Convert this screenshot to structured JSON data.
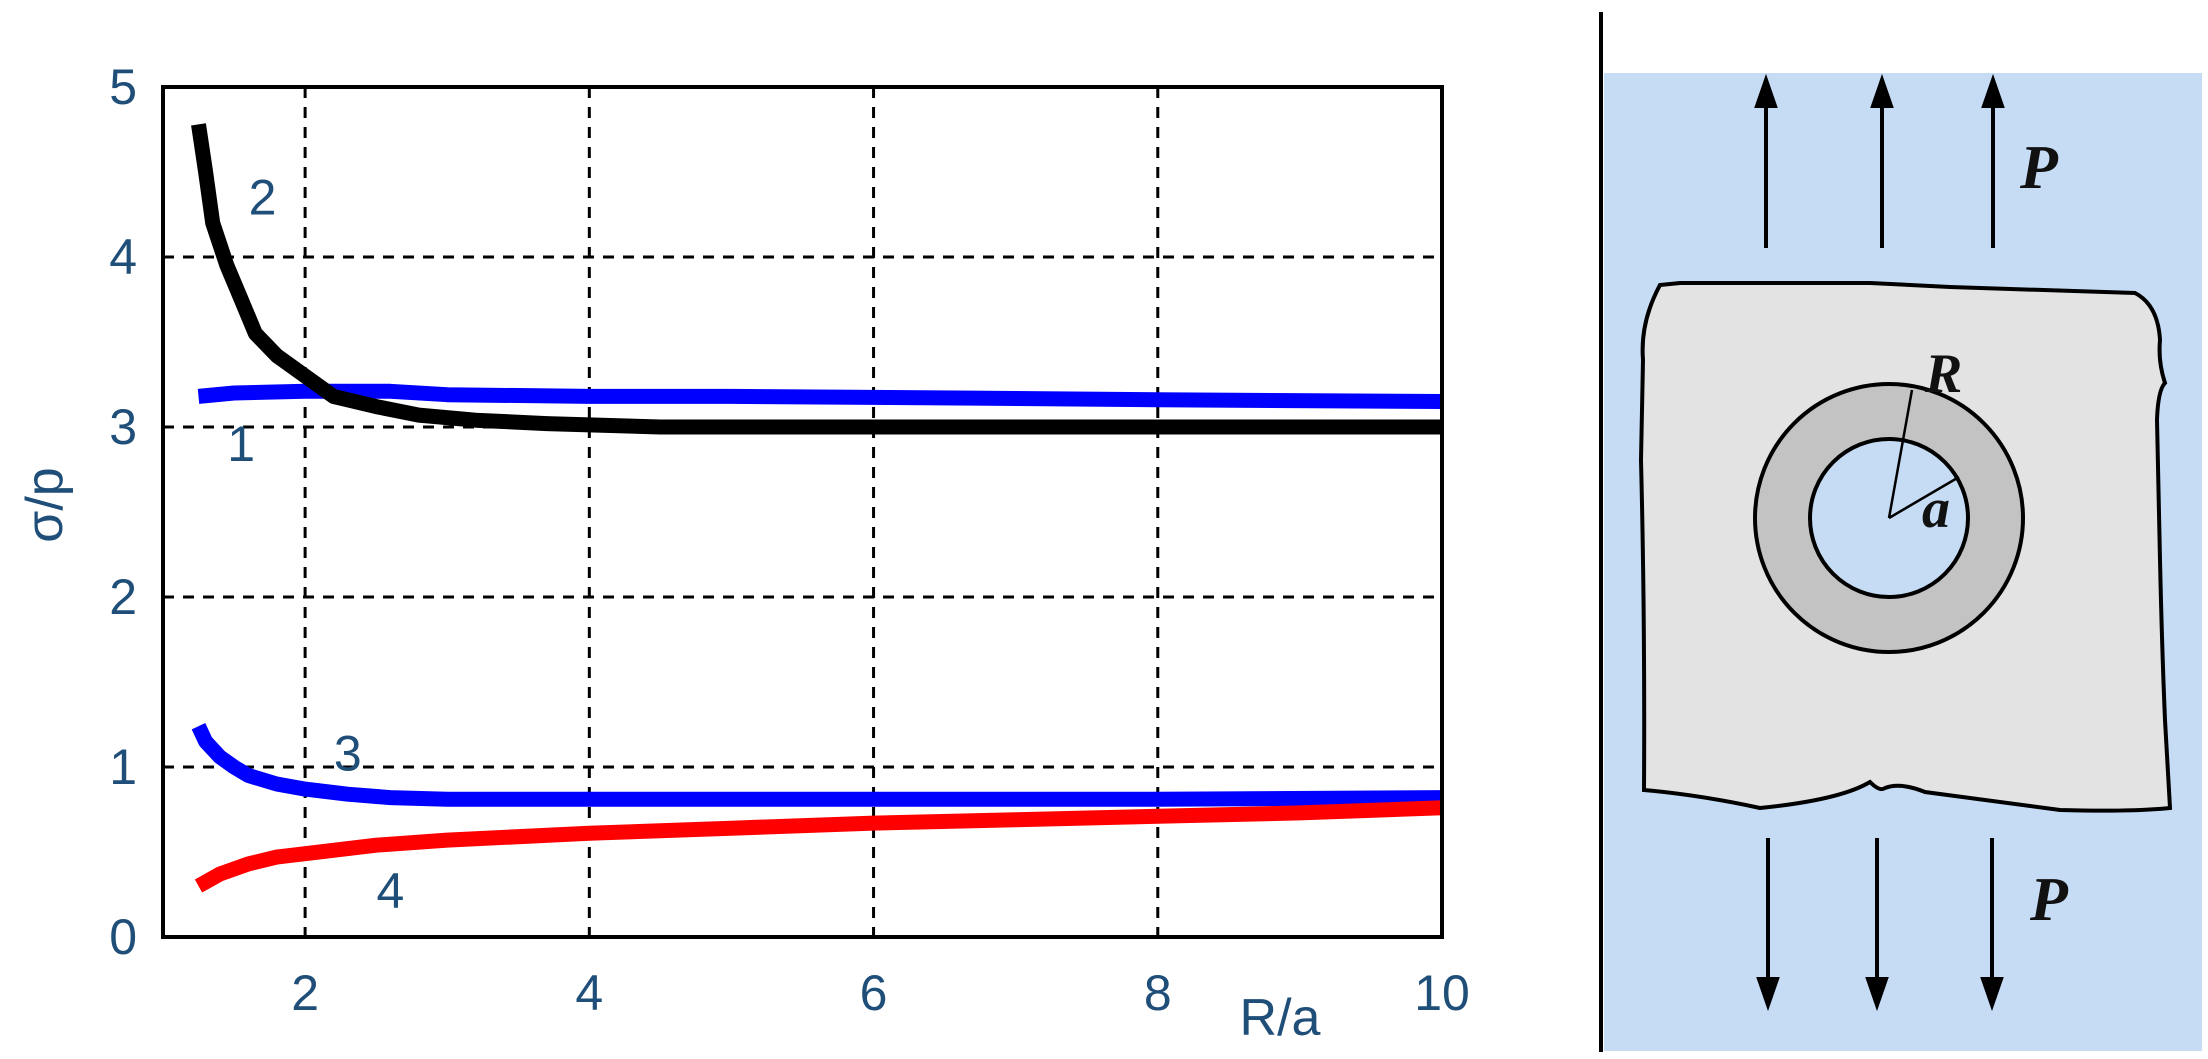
{
  "chart_data": {
    "type": "line",
    "title": "",
    "xlabel": "R/a",
    "ylabel": "σ/p",
    "xlim": [
      1,
      10
    ],
    "ylim": [
      0,
      5
    ],
    "x_ticks": [
      2,
      4,
      6,
      8,
      10
    ],
    "y_ticks": [
      0,
      1,
      2,
      3,
      4,
      5
    ],
    "grid": true,
    "series": [
      {
        "name": "1",
        "color": "#0000ff",
        "x": [
          1.25,
          1.5,
          2.0,
          2.6,
          3.0,
          4.0,
          5.0,
          6.7,
          8.0,
          10.0
        ],
        "y": [
          3.18,
          3.2,
          3.21,
          3.21,
          3.19,
          3.18,
          3.18,
          3.17,
          3.16,
          3.15
        ]
      },
      {
        "name": "2",
        "color": "#000000",
        "x": [
          1.25,
          1.3,
          1.35,
          1.45,
          1.55,
          1.65,
          1.8,
          2.0,
          2.2,
          2.5,
          2.8,
          3.2,
          3.7,
          4.5,
          6.0,
          8.0,
          10.0
        ],
        "y": [
          4.78,
          4.5,
          4.2,
          3.95,
          3.75,
          3.55,
          3.42,
          3.3,
          3.18,
          3.12,
          3.07,
          3.04,
          3.02,
          3.0,
          3.0,
          3.0,
          3.0
        ]
      },
      {
        "name": "3",
        "color": "#0000ff",
        "x": [
          1.25,
          1.3,
          1.4,
          1.5,
          1.6,
          1.8,
          2.0,
          2.3,
          2.6,
          3.0,
          4.0,
          6.0,
          8.0,
          10.0
        ],
        "y": [
          1.24,
          1.15,
          1.06,
          1.0,
          0.95,
          0.9,
          0.87,
          0.84,
          0.82,
          0.81,
          0.81,
          0.81,
          0.81,
          0.82
        ]
      },
      {
        "name": "4",
        "color": "#ff0000",
        "x": [
          1.25,
          1.4,
          1.6,
          1.8,
          2.0,
          2.5,
          3.0,
          4.0,
          5.0,
          6.0,
          7.0,
          8.0,
          9.0,
          10.0
        ],
        "y": [
          0.3,
          0.37,
          0.43,
          0.47,
          0.49,
          0.54,
          0.57,
          0.61,
          0.64,
          0.67,
          0.69,
          0.71,
          0.73,
          0.76
        ]
      }
    ],
    "curve_labels": [
      {
        "text": "1",
        "x": 1.55,
        "y": 2.8
      },
      {
        "text": "2",
        "x": 1.7,
        "y": 4.25
      },
      {
        "text": "3",
        "x": 2.3,
        "y": 0.98
      },
      {
        "text": "4",
        "x": 2.6,
        "y": 0.17
      }
    ]
  },
  "diagram": {
    "load_top": "P",
    "load_bottom": "P",
    "outer_radius": "R",
    "inner_radius": "a",
    "colors": {
      "background": "#c5dcf4",
      "plate": "#e3e3e3",
      "ring": "#c3c3c3",
      "hole": "#c5dcf4"
    }
  }
}
